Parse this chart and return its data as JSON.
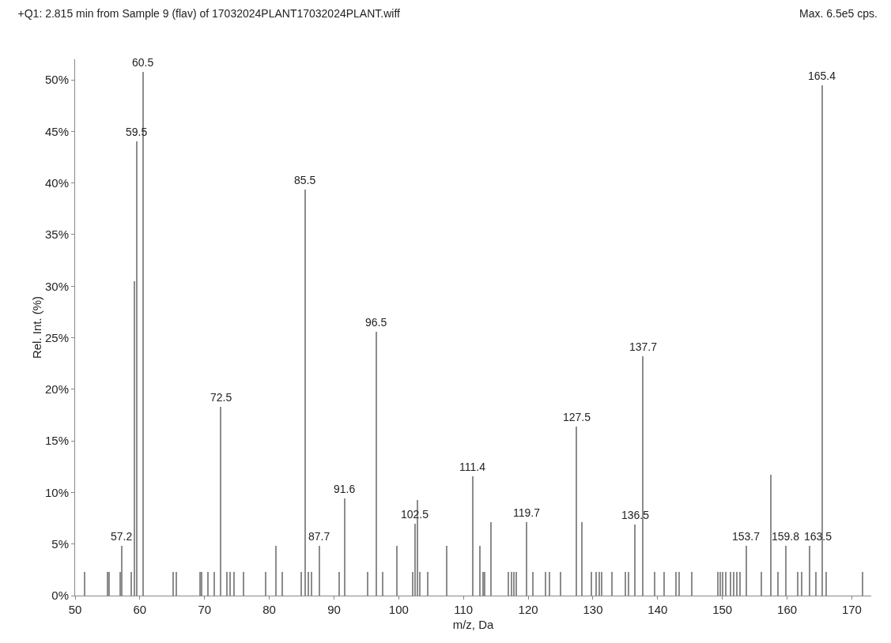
{
  "chart_data": {
    "type": "bar",
    "title": "+Q1: 2.815 min from Sample 9 (flav) of 17032024PLANT17032024PLANT.wiff",
    "xlabel": "m/z, Da",
    "ylabel": "Rel. Int. (%)",
    "x": [
      51.5,
      55,
      55.3,
      57,
      57.2,
      58.7,
      59.2,
      59.5,
      60.5,
      65.2,
      65.6,
      69.3,
      69.6,
      70.5,
      71.5,
      72.5,
      73.5,
      74,
      74.5,
      76,
      79.5,
      81,
      82,
      85,
      85.5,
      86,
      86.5,
      87.7,
      90.8,
      91.6,
      95.2,
      96.5,
      97.5,
      99.7,
      102.2,
      102.5,
      102.9,
      103.3,
      104.5,
      107.4,
      111.4,
      112.5,
      113,
      113.3,
      114.3,
      117,
      117.4,
      117.8,
      118.2,
      119.7,
      120.7,
      122.7,
      123.3,
      125,
      127.5,
      128.3,
      129.8,
      130.5,
      131,
      131.3,
      133,
      135,
      135.5,
      136.5,
      137.7,
      139.5,
      141,
      142.8,
      143.3,
      145.3,
      149.3,
      149.7,
      150,
      150.5,
      151.3,
      151.8,
      152.2,
      152.7,
      153.7,
      156,
      157.5,
      158.6,
      159.8,
      161.7,
      162.2,
      163.5,
      164.5,
      165.4,
      166,
      171.7
    ],
    "values": [
      2.3,
      2.3,
      2.3,
      2.3,
      4.8,
      2.3,
      30.5,
      44,
      50.8,
      2.3,
      2.3,
      2.3,
      2.3,
      2.3,
      2.3,
      18.3,
      2.3,
      2.3,
      2.3,
      2.3,
      2.3,
      4.8,
      2.3,
      2.3,
      39.4,
      2.3,
      2.3,
      4.8,
      2.3,
      9.4,
      2.3,
      25.6,
      2.3,
      4.8,
      2.3,
      7,
      9.3,
      2.3,
      2.3,
      4.8,
      11.6,
      4.8,
      2.3,
      2.3,
      7.1,
      2.3,
      2.3,
      2.3,
      2.3,
      7.1,
      2.3,
      2.3,
      2.3,
      2.3,
      16.4,
      7.1,
      2.3,
      2.3,
      2.3,
      2.3,
      2.3,
      2.3,
      2.3,
      6.9,
      23.2,
      2.3,
      2.3,
      2.3,
      2.3,
      2.3,
      2.3,
      2.3,
      2.3,
      2.3,
      2.3,
      2.3,
      2.3,
      2.3,
      4.8,
      2.3,
      11.7,
      2.3,
      4.8,
      2.3,
      2.3,
      4.8,
      2.3,
      49.5,
      2.3,
      2.3
    ],
    "color": "#8c8c8c",
    "xlim": [
      50,
      173
    ],
    "xticks": [
      50,
      60,
      70,
      80,
      90,
      100,
      110,
      120,
      130,
      140,
      150,
      160,
      170
    ],
    "ylim": [
      0,
      52
    ],
    "yticks": [
      {
        "value": 0,
        "label": "0%"
      },
      {
        "value": 5,
        "label": "5%"
      },
      {
        "value": 10,
        "label": "10%"
      },
      {
        "value": 15,
        "label": "15%"
      },
      {
        "value": 20,
        "label": "20%"
      },
      {
        "value": 25,
        "label": "25%"
      },
      {
        "value": 30,
        "label": "30%"
      },
      {
        "value": 35,
        "label": "35%"
      },
      {
        "value": 40,
        "label": "40%"
      },
      {
        "value": 45,
        "label": "45%"
      },
      {
        "value": 50,
        "label": "50%"
      }
    ],
    "grid": false,
    "legend": false,
    "annotations": [
      "Max. 6.5e5 cps.",
      {
        "text": "57.2",
        "x": 57.2,
        "y": 4.8
      },
      {
        "text": "59.5",
        "x": 59.5,
        "y": 44
      },
      {
        "text": "60.5",
        "x": 60.5,
        "y": 50.8
      },
      {
        "text": "72.5",
        "x": 72.5,
        "y": 18.3
      },
      {
        "text": "85.5",
        "x": 85.5,
        "y": 39.4
      },
      {
        "text": "87.7",
        "x": 87.7,
        "y": 4.8
      },
      {
        "text": "91.6",
        "x": 91.6,
        "y": 9.4
      },
      {
        "text": "96.5",
        "x": 96.5,
        "y": 25.6
      },
      {
        "text": "102.5",
        "x": 102.5,
        "y": 7
      },
      {
        "text": "111.4",
        "x": 111.4,
        "y": 11.6
      },
      {
        "text": "119.7",
        "x": 119.7,
        "y": 7.1
      },
      {
        "text": "127.5",
        "x": 127.5,
        "y": 16.4
      },
      {
        "text": "136.5",
        "x": 136.5,
        "y": 6.9
      },
      {
        "text": "137.7",
        "x": 137.7,
        "y": 23.2
      },
      {
        "text": "153.7",
        "x": 153.7,
        "y": 4.8
      },
      {
        "text": "159.8",
        "x": 159.8,
        "y": 4.8
      },
      {
        "text": "163.5",
        "x": 163.5,
        "y": 4.8
      },
      {
        "text": "165.4",
        "x": 165.4,
        "y": 49.5
      }
    ]
  }
}
